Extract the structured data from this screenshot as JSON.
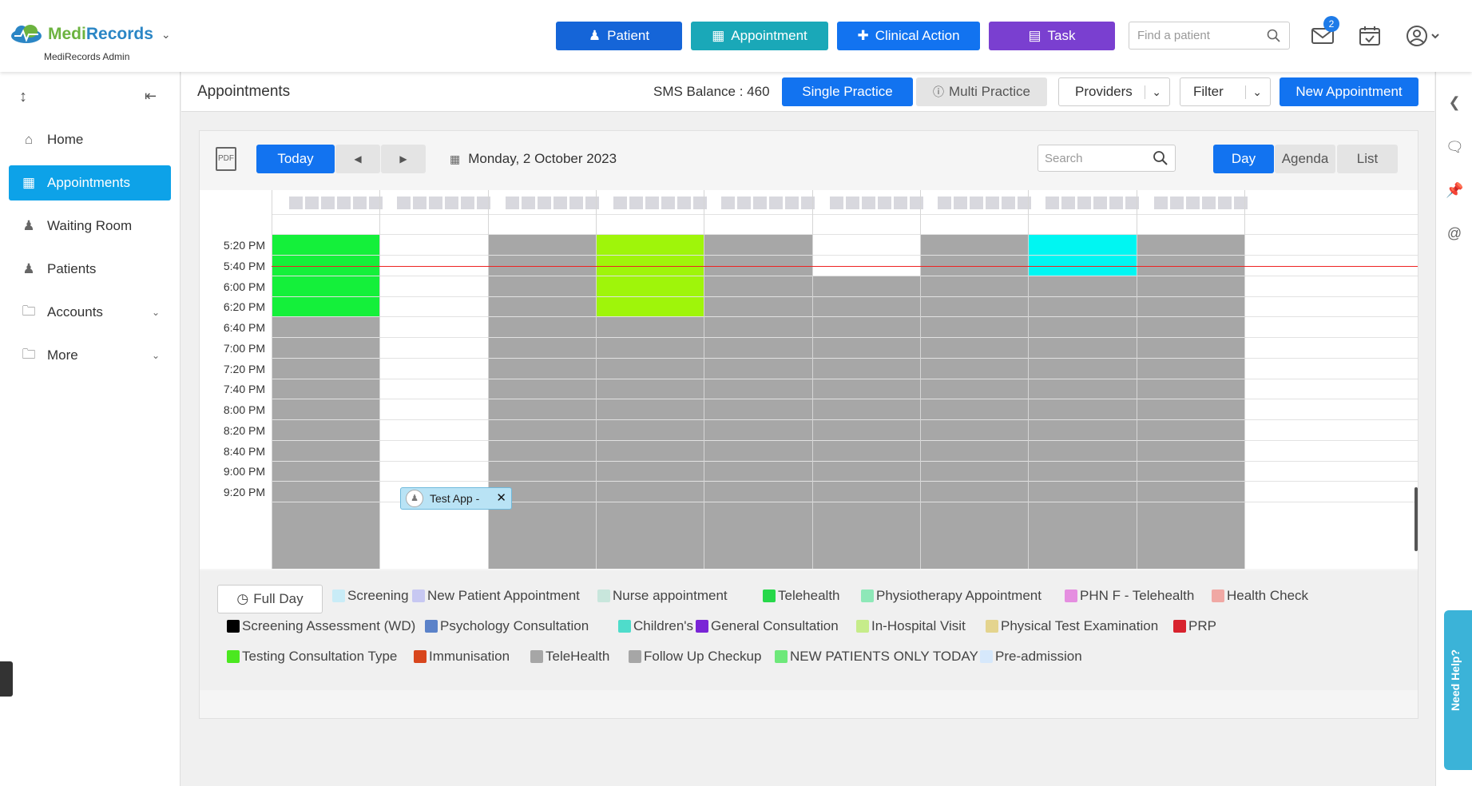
{
  "app": {
    "brand_a": "Medi",
    "brand_b": "Records",
    "subtitle": "MediRecords Admin"
  },
  "topnav": {
    "patient": "Patient",
    "appointment": "Appointment",
    "clinical_action": "Clinical Action",
    "task": "Task",
    "find_placeholder": "Find a patient",
    "mail_count": "2"
  },
  "sidebar": {
    "items": [
      {
        "label": "Home",
        "icon": "home-icon"
      },
      {
        "label": "Appointments",
        "icon": "calendar-icon",
        "active": true
      },
      {
        "label": "Waiting Room",
        "icon": "people-icon"
      },
      {
        "label": "Patients",
        "icon": "people-icon"
      },
      {
        "label": "Accounts",
        "icon": "folder-icon"
      },
      {
        "label": "More",
        "icon": "folder-icon"
      }
    ]
  },
  "header": {
    "title": "Appointments",
    "sms": "SMS Balance : 460",
    "single": "Single Practice",
    "multi": "Multi Practice",
    "providers": "Providers",
    "filter": "Filter",
    "new_appt": "New Appointment"
  },
  "toolbar": {
    "today": "Today",
    "date": "Monday, 2 October 2023",
    "search_placeholder": "Search",
    "views": [
      "Day",
      "Agenda",
      "List"
    ]
  },
  "times": [
    "5:20 PM",
    "5:40 PM",
    "6:00 PM",
    "6:20 PM",
    "6:40 PM",
    "7:00 PM",
    "7:20 PM",
    "7:40 PM",
    "8:00 PM",
    "8:20 PM",
    "8:40 PM",
    "9:00 PM",
    "9:20 PM"
  ],
  "appointment": {
    "label": "Test App -"
  },
  "legend": {
    "full_day": "Full Day",
    "items": [
      {
        "label": "Screening",
        "color": "#c9ecf7"
      },
      {
        "label": "New Patient Appointment",
        "color": "#c7c8f2"
      },
      {
        "label": "Nurse appointment",
        "color": "#c8e6dc"
      },
      {
        "label": "Telehealth",
        "color": "#27d84a"
      },
      {
        "label": "Physiotherapy Appointment",
        "color": "#8ee8b8"
      },
      {
        "label": "PHN F - Telehealth",
        "color": "#e58ee0"
      },
      {
        "label": "Health Check",
        "color": "#f0a8a4"
      },
      {
        "label": "Screening Assessment (WD)",
        "color": "#000000"
      },
      {
        "label": "Psychology Consultation",
        "color": "#5b82c9"
      },
      {
        "label": "Children's",
        "color": "#4fdccb"
      },
      {
        "label": "General Consultation",
        "color": "#7a25d6"
      },
      {
        "label": "In-Hospital Visit",
        "color": "#c6ec8a"
      },
      {
        "label": "Physical Test Examination",
        "color": "#e4d48e"
      },
      {
        "label": "PRP",
        "color": "#d8232e"
      },
      {
        "label": "Testing Consultation Type",
        "color": "#4be81f"
      },
      {
        "label": "Immunisation",
        "color": "#d8461d"
      },
      {
        "label": "TeleHealth",
        "color": "#a6a6a6"
      },
      {
        "label": "Follow Up Checkup",
        "color": "#a6a6a6"
      },
      {
        "label": "NEW PATIENTS ONLY TODAY",
        "color": "#6ee87a"
      },
      {
        "label": "Pre-admission",
        "color": "#d6e8fb"
      }
    ]
  },
  "colors": {
    "primary": "#1273f0",
    "active_nav": "#0da2e8",
    "teal": "#1aa8b8",
    "purple": "#7a3fd0",
    "grey_block": "#a7a7a7"
  },
  "help": "Need Help?"
}
